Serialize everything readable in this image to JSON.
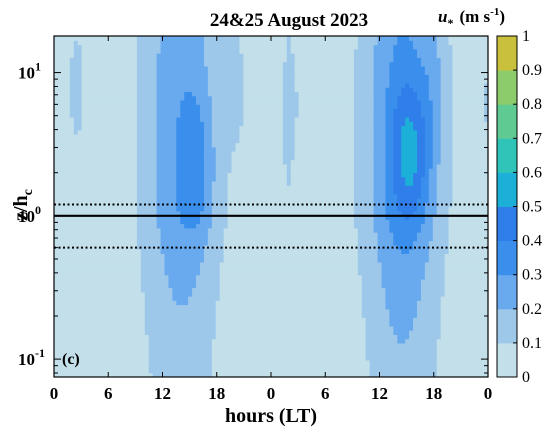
{
  "chart_data": {
    "type": "contour",
    "title": "24&25 August 2023",
    "xlabel": "hours (LT)",
    "ylabel": "z/h",
    "ylabel_sub": "c",
    "colorbar_label": "u",
    "colorbar_label_sub": "*",
    "colorbar_unit": "(m s",
    "colorbar_unit_sup": "-1",
    "colorbar_unit_close": ")",
    "panel_label": "(c)",
    "x_ticks": [
      "0",
      "6",
      "12",
      "18",
      "0",
      "6",
      "12",
      "18",
      "0"
    ],
    "x_tick_hours": [
      0,
      6,
      12,
      18,
      24,
      30,
      36,
      42,
      48
    ],
    "xlim": [
      0,
      48
    ],
    "y_scale": "log",
    "ylim": [
      0.075,
      18
    ],
    "y_ticks": [
      {
        "base": "10",
        "exp": "-1",
        "value": 0.1
      },
      {
        "base": "10",
        "exp": "0",
        "value": 1
      },
      {
        "base": "10",
        "exp": "1",
        "value": 10
      }
    ],
    "colorbar_ticks": [
      "0",
      "0.1",
      "0.2",
      "0.3",
      "0.4",
      "0.5",
      "0.6",
      "0.7",
      "0.8",
      "0.9",
      "1"
    ],
    "clim": [
      0,
      1
    ],
    "colormap": [
      "#c3e0ea",
      "#9ec8ea",
      "#69aaef",
      "#3b8fec",
      "#2f7eea",
      "#1cb0d8",
      "#30c4b8",
      "#5fcb92",
      "#8dcc6b",
      "#c9c13c",
      "#f9e71e"
    ],
    "reference_lines": [
      {
        "z_over_hc": 1.0,
        "style": "solid"
      },
      {
        "z_over_hc": 1.2,
        "style": "dotted"
      },
      {
        "z_over_hc": 0.6,
        "style": "dotted"
      }
    ],
    "u_star_peaks": [
      {
        "hour": 15.5,
        "z_over_hc": 2.5,
        "u_star": 0.45
      },
      {
        "hour": 39.5,
        "z_over_hc": 3.0,
        "u_star": 0.55
      }
    ]
  }
}
